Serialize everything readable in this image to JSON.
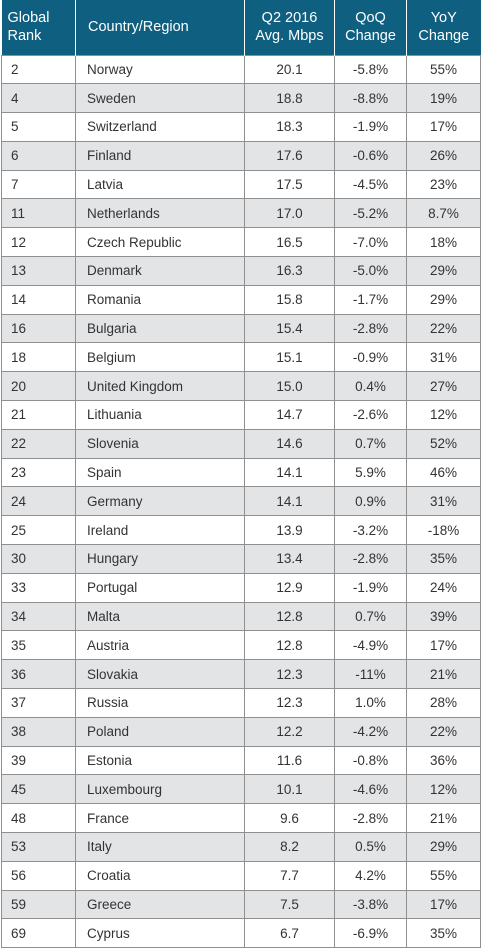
{
  "header": {
    "rank_line1": "Global",
    "rank_line2": "Rank",
    "country": "Country/Region",
    "speed_line1": "Q2 2016",
    "speed_line2": "Avg. Mbps",
    "qoq_line1": "QoQ",
    "qoq_line2": "Change",
    "yoy_line1": "YoY",
    "yoy_line2": "Change"
  },
  "colors": {
    "header_bg": "#0f5f80",
    "header_text": "#ffffff",
    "stripe": "#e3e4e6"
  },
  "rows": [
    [
      "2",
      "Norway",
      "20.1",
      "-5.8%",
      "55%"
    ],
    [
      "4",
      "Sweden",
      "18.8",
      "-8.8%",
      "19%"
    ],
    [
      "5",
      "Switzerland",
      "18.3",
      "-1.9%",
      "17%"
    ],
    [
      "6",
      "Finland",
      "17.6",
      "-0.6%",
      "26%"
    ],
    [
      "7",
      "Latvia",
      "17.5",
      "-4.5%",
      "23%"
    ],
    [
      "11",
      "Netherlands",
      "17.0",
      "-5.2%",
      "8.7%"
    ],
    [
      "12",
      "Czech Republic",
      "16.5",
      "-7.0%",
      "18%"
    ],
    [
      "13",
      "Denmark",
      "16.3",
      "-5.0%",
      "29%"
    ],
    [
      "14",
      "Romania",
      "15.8",
      "-1.7%",
      "29%"
    ],
    [
      "16",
      "Bulgaria",
      "15.4",
      "-2.8%",
      "22%"
    ],
    [
      "18",
      "Belgium",
      "15.1",
      "-0.9%",
      "31%"
    ],
    [
      "20",
      "United Kingdom",
      "15.0",
      "0.4%",
      "27%"
    ],
    [
      "21",
      "Lithuania",
      "14.7",
      "-2.6%",
      "12%"
    ],
    [
      "22",
      "Slovenia",
      "14.6",
      "0.7%",
      "52%"
    ],
    [
      "23",
      "Spain",
      "14.1",
      "5.9%",
      "46%"
    ],
    [
      "24",
      "Germany",
      "14.1",
      "0.9%",
      "31%"
    ],
    [
      "25",
      "Ireland",
      "13.9",
      "-3.2%",
      "-18%"
    ],
    [
      "30",
      "Hungary",
      "13.4",
      "-2.8%",
      "35%"
    ],
    [
      "33",
      "Portugal",
      "12.9",
      "-1.9%",
      "24%"
    ],
    [
      "34",
      "Malta",
      "12.8",
      "0.7%",
      "39%"
    ],
    [
      "35",
      "Austria",
      "12.8",
      "-4.9%",
      "17%"
    ],
    [
      "36",
      "Slovakia",
      "12.3",
      "-11%",
      "21%"
    ],
    [
      "37",
      "Russia",
      "12.3",
      "1.0%",
      "28%"
    ],
    [
      "38",
      "Poland",
      "12.2",
      "-4.2%",
      "22%"
    ],
    [
      "39",
      "Estonia",
      "11.6",
      "-0.8%",
      "36%"
    ],
    [
      "45",
      "Luxembourg",
      "10.1",
      "-4.6%",
      "12%"
    ],
    [
      "48",
      "France",
      "9.6",
      "-2.8%",
      "21%"
    ],
    [
      "53",
      "Italy",
      "8.2",
      "0.5%",
      "29%"
    ],
    [
      "56",
      "Croatia",
      "7.7",
      "4.2%",
      "55%"
    ],
    [
      "59",
      "Greece",
      "7.5",
      "-3.8%",
      "17%"
    ],
    [
      "69",
      "Cyprus",
      "6.7",
      "-6.9%",
      "35%"
    ]
  ]
}
